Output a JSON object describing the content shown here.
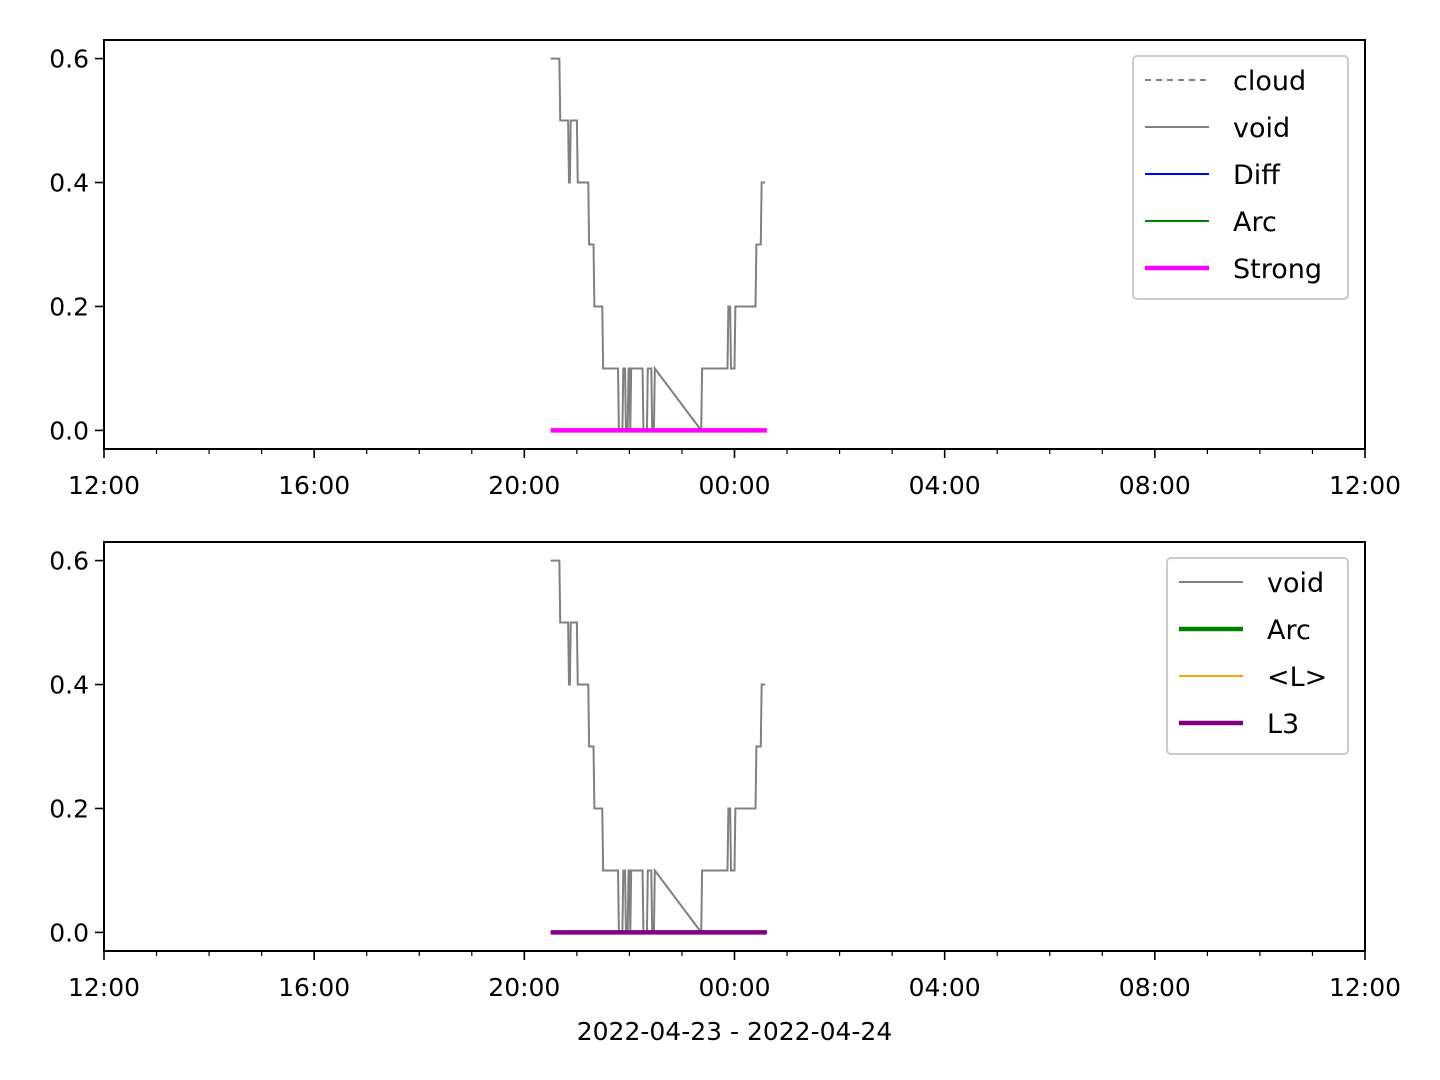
{
  "chart_data": [
    {
      "type": "line",
      "xlim": [
        "2022-04-23T12:00",
        "2022-04-24T12:00"
      ],
      "ylim": [
        -0.03,
        0.63
      ],
      "yticks": [
        0.0,
        0.2,
        0.4,
        0.6
      ],
      "ytick_labels": [
        "0.0",
        "0.2",
        "0.4",
        "0.6"
      ],
      "xtick_labels": [
        "12:00",
        "16:00",
        "20:00",
        "00:00",
        "04:00",
        "08:00",
        "12:00"
      ],
      "xlabel": "",
      "grid": false,
      "legend_position": "top-right",
      "series": [
        {
          "name": "cloud",
          "color": "#808080",
          "style": "dashed",
          "x": [],
          "y": []
        },
        {
          "name": "void",
          "color": "#808080",
          "style": "solid",
          "x": [
            "2022-04-23T20:30",
            "2022-04-23T20:40",
            "2022-04-23T20:41",
            "2022-04-23T20:50",
            "2022-04-23T20:51",
            "2022-04-23T20:52",
            "2022-04-23T20:53",
            "2022-04-23T20:54",
            "2022-04-23T20:55",
            "2022-04-23T21:00",
            "2022-04-23T21:01",
            "2022-04-23T21:13",
            "2022-04-23T21:14",
            "2022-04-23T21:19",
            "2022-04-23T21:20",
            "2022-04-23T21:29",
            "2022-04-23T21:30",
            "2022-04-23T21:47",
            "2022-04-23T21:48",
            "2022-04-23T21:52",
            "2022-04-23T21:53",
            "2022-04-23T21:55",
            "2022-04-23T21:56",
            "2022-04-23T21:58",
            "2022-04-23T21:59",
            "2022-04-23T22:00",
            "2022-04-23T22:01",
            "2022-04-23T22:02",
            "2022-04-23T22:03",
            "2022-04-23T22:15",
            "2022-04-23T22:16",
            "2022-04-23T22:20",
            "2022-04-23T22:21",
            "2022-04-23T22:25",
            "2022-04-23T22:26",
            "2022-04-23T22:28",
            "2022-04-23T22:29",
            "2022-04-23T23:22",
            "2022-04-23T23:23",
            "2022-04-23T23:52",
            "2022-04-23T23:53",
            "2022-04-23T23:55",
            "2022-04-23T23:56",
            "2022-04-24T00:00",
            "2022-04-24T00:01",
            "2022-04-24T00:24",
            "2022-04-24T00:25",
            "2022-04-24T00:30",
            "2022-04-24T00:31",
            "2022-04-24T00:35"
          ],
          "y": [
            0.6,
            0.6,
            0.5,
            0.5,
            0.4,
            0.4,
            0.5,
            0.5,
            0.5,
            0.5,
            0.4,
            0.4,
            0.3,
            0.3,
            0.2,
            0.2,
            0.1,
            0.1,
            0,
            0,
            0.1,
            0.1,
            0,
            0,
            0.1,
            0.1,
            0,
            0.1,
            0.1,
            0.1,
            0,
            0,
            0.1,
            0.1,
            0,
            0,
            0.1,
            0,
            0.1,
            0.1,
            0.2,
            0.2,
            0.1,
            0.1,
            0.2,
            0.2,
            0.3,
            0.3,
            0.4,
            0.4
          ]
        },
        {
          "name": "Diff",
          "color": "#0000ff",
          "style": "solid",
          "x": [],
          "y": []
        },
        {
          "name": "Arc",
          "color": "#008000",
          "style": "solid",
          "x": [],
          "y": []
        },
        {
          "name": "Strong",
          "color": "#ff00ff",
          "style": "solid-thick",
          "x": [
            "2022-04-23T20:30",
            "2022-04-24T00:37"
          ],
          "y": [
            0,
            0
          ]
        }
      ]
    },
    {
      "type": "line",
      "xlim": [
        "2022-04-23T12:00",
        "2022-04-24T12:00"
      ],
      "ylim": [
        -0.03,
        0.63
      ],
      "yticks": [
        0.0,
        0.2,
        0.4,
        0.6
      ],
      "ytick_labels": [
        "0.0",
        "0.2",
        "0.4",
        "0.6"
      ],
      "xtick_labels": [
        "12:00",
        "16:00",
        "20:00",
        "00:00",
        "04:00",
        "08:00",
        "12:00"
      ],
      "xlabel": "2022-04-23 - 2022-04-24",
      "grid": false,
      "legend_position": "top-right",
      "series": [
        {
          "name": "void",
          "color": "#808080",
          "style": "solid",
          "x": [
            "2022-04-23T20:30",
            "2022-04-23T20:40",
            "2022-04-23T20:41",
            "2022-04-23T20:50",
            "2022-04-23T20:51",
            "2022-04-23T20:52",
            "2022-04-23T20:53",
            "2022-04-23T20:54",
            "2022-04-23T20:55",
            "2022-04-23T21:00",
            "2022-04-23T21:01",
            "2022-04-23T21:13",
            "2022-04-23T21:14",
            "2022-04-23T21:19",
            "2022-04-23T21:20",
            "2022-04-23T21:29",
            "2022-04-23T21:30",
            "2022-04-23T21:47",
            "2022-04-23T21:48",
            "2022-04-23T21:52",
            "2022-04-23T21:53",
            "2022-04-23T21:55",
            "2022-04-23T21:56",
            "2022-04-23T21:58",
            "2022-04-23T21:59",
            "2022-04-23T22:00",
            "2022-04-23T22:01",
            "2022-04-23T22:02",
            "2022-04-23T22:03",
            "2022-04-23T22:15",
            "2022-04-23T22:16",
            "2022-04-23T22:20",
            "2022-04-23T22:21",
            "2022-04-23T22:25",
            "2022-04-23T22:26",
            "2022-04-23T22:28",
            "2022-04-23T22:29",
            "2022-04-23T23:22",
            "2022-04-23T23:23",
            "2022-04-23T23:52",
            "2022-04-23T23:53",
            "2022-04-23T23:55",
            "2022-04-23T23:56",
            "2022-04-24T00:00",
            "2022-04-24T00:01",
            "2022-04-24T00:24",
            "2022-04-24T00:25",
            "2022-04-24T00:30",
            "2022-04-24T00:31",
            "2022-04-24T00:35"
          ],
          "y": [
            0.6,
            0.6,
            0.5,
            0.5,
            0.4,
            0.4,
            0.5,
            0.5,
            0.5,
            0.5,
            0.4,
            0.4,
            0.3,
            0.3,
            0.2,
            0.2,
            0.1,
            0.1,
            0,
            0,
            0.1,
            0.1,
            0,
            0,
            0.1,
            0.1,
            0,
            0.1,
            0.1,
            0.1,
            0,
            0,
            0.1,
            0.1,
            0,
            0,
            0.1,
            0,
            0.1,
            0.1,
            0.2,
            0.2,
            0.1,
            0.1,
            0.2,
            0.2,
            0.3,
            0.3,
            0.4,
            0.4
          ]
        },
        {
          "name": "Arc",
          "color": "#008000",
          "style": "solid-thick",
          "x": [],
          "y": []
        },
        {
          "name": "<L>",
          "color": "#ffa500",
          "style": "solid",
          "x": [],
          "y": []
        },
        {
          "name": "L3",
          "color": "#800080",
          "style": "solid-thick",
          "x": [
            "2022-04-23T20:30",
            "2022-04-24T00:37"
          ],
          "y": [
            0,
            0
          ]
        }
      ]
    }
  ]
}
